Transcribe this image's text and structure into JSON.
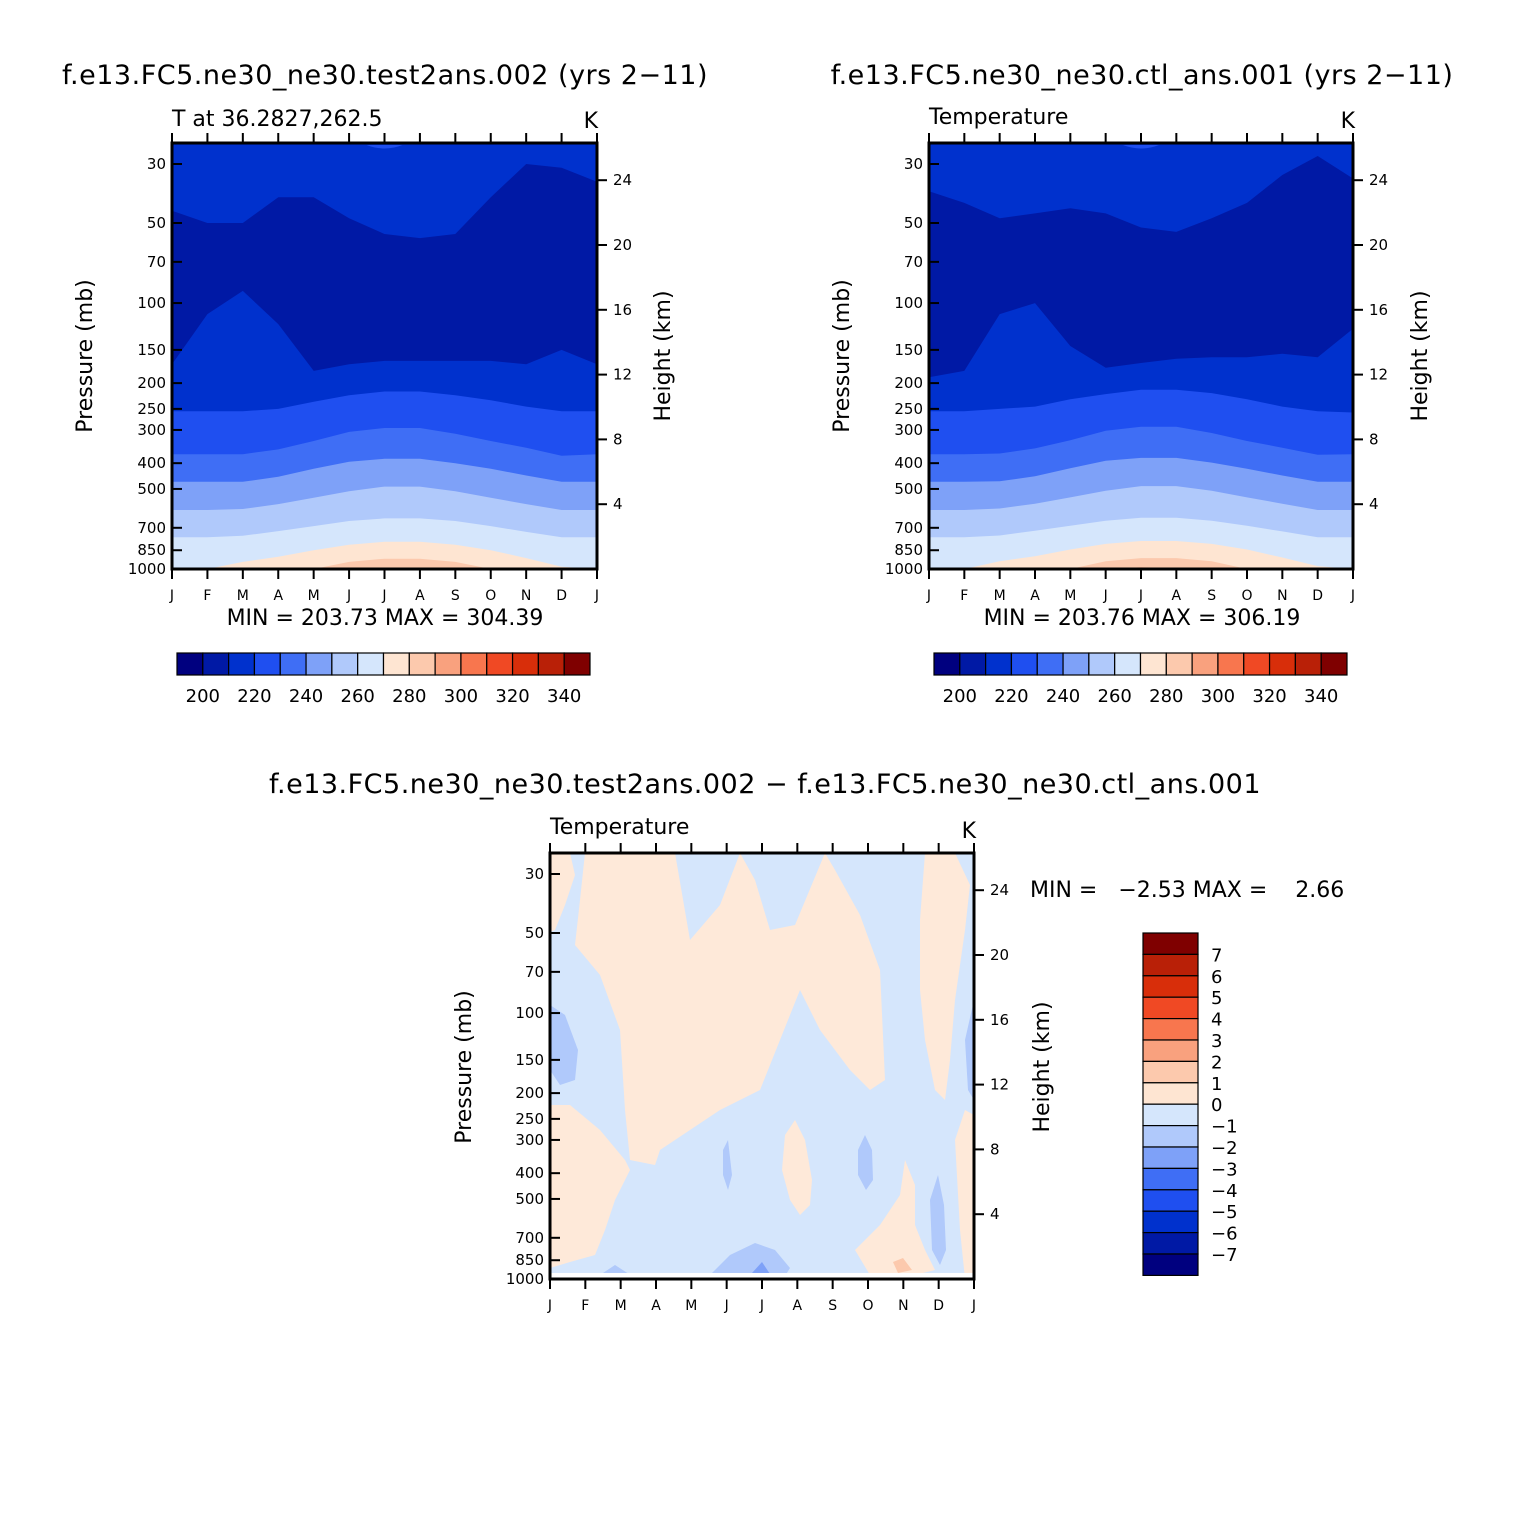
{
  "chart_data": [
    {
      "type": "heatmap",
      "title": "f.e13.FC5.ne30_ne30.test2ans.002 (yrs 2−11)",
      "subtitle_left": "T at 36.2827,262.5",
      "units": "K",
      "ylabel": "Pressure (mb)",
      "y2label": "Height (km)",
      "min_max_text": "MIN = 203.73 MAX = 304.39",
      "min": 203.73,
      "max": 304.39,
      "x": [
        "J",
        "F",
        "M",
        "A",
        "M",
        "J",
        "J",
        "A",
        "S",
        "O",
        "N",
        "D",
        "J"
      ],
      "pressure_ticks": [
        30,
        50,
        70,
        100,
        150,
        200,
        250,
        300,
        400,
        500,
        700,
        850,
        1000
      ],
      "height_ticks_km": [
        4,
        8,
        12,
        16,
        20,
        24
      ],
      "colorbar_labels": [
        "200",
        "220",
        "240",
        "260",
        "280",
        "300",
        "320",
        "340"
      ],
      "contour_levels": [
        210,
        220,
        230,
        240,
        250,
        260,
        270,
        280,
        290,
        300
      ],
      "contour_boundaries_mb": {
        "210": [
          45,
          50,
          50,
          40,
          40,
          48,
          55,
          57,
          55,
          40,
          30,
          31,
          35
        ],
        "220": [
          170,
          110,
          90,
          120,
          180,
          170,
          165,
          165,
          165,
          165,
          170,
          150,
          170
        ],
        "230": [
          255,
          255,
          255,
          250,
          235,
          222,
          215,
          215,
          222,
          232,
          245,
          255,
          255
        ],
        "240": [
          370,
          370,
          370,
          355,
          330,
          305,
          295,
          295,
          310,
          330,
          350,
          375,
          370
        ],
        "250": [
          470,
          470,
          470,
          450,
          420,
          395,
          385,
          385,
          400,
          420,
          445,
          470,
          470
        ],
        "260": [
          600,
          600,
          595,
          570,
          540,
          510,
          490,
          490,
          510,
          540,
          570,
          600,
          600
        ],
        "270": [
          760,
          760,
          750,
          720,
          690,
          660,
          645,
          645,
          660,
          690,
          725,
          760,
          760
        ],
        "280": [
          1000,
          1000,
          940,
          900,
          850,
          810,
          790,
          790,
          810,
          850,
          910,
          980,
          1000
        ],
        "290": [
          null,
          null,
          null,
          null,
          1000,
          940,
          915,
          915,
          940,
          1000,
          null,
          null,
          null
        ],
        "300": [
          null,
          null,
          null,
          null,
          null,
          null,
          990,
          995,
          null,
          null,
          null,
          null,
          null
        ]
      }
    },
    {
      "type": "heatmap",
      "title": "f.e13.FC5.ne30_ne30.ctl_ans.001 (yrs 2−11)",
      "subtitle_left": "Temperature",
      "units": "K",
      "ylabel": "Pressure (mb)",
      "y2label": "Height (km)",
      "min_max_text": "MIN = 203.76 MAX = 306.19",
      "min": 203.76,
      "max": 306.19,
      "x": [
        "J",
        "F",
        "M",
        "A",
        "M",
        "J",
        "J",
        "A",
        "S",
        "O",
        "N",
        "D",
        "J"
      ],
      "pressure_ticks": [
        30,
        50,
        70,
        100,
        150,
        200,
        250,
        300,
        400,
        500,
        700,
        850,
        1000
      ],
      "height_ticks_km": [
        4,
        8,
        12,
        16,
        20,
        24
      ],
      "colorbar_labels": [
        "200",
        "220",
        "240",
        "260",
        "280",
        "300",
        "320",
        "340"
      ],
      "contour_levels": [
        210,
        220,
        230,
        240,
        250,
        260,
        270,
        280,
        290,
        300
      ],
      "contour_boundaries_mb": {
        "210": [
          38,
          42,
          48,
          46,
          44,
          46,
          52,
          54,
          48,
          42,
          33,
          28,
          34
        ],
        "220": [
          190,
          180,
          110,
          100,
          145,
          175,
          168,
          162,
          160,
          160,
          155,
          160,
          125
        ],
        "230": [
          255,
          255,
          250,
          245,
          230,
          220,
          212,
          212,
          218,
          230,
          245,
          255,
          258
        ],
        "240": [
          370,
          370,
          368,
          352,
          328,
          302,
          292,
          292,
          308,
          330,
          350,
          372,
          370
        ],
        "250": [
          470,
          470,
          468,
          448,
          418,
          392,
          382,
          382,
          398,
          420,
          445,
          470,
          470
        ],
        "260": [
          600,
          600,
          592,
          568,
          538,
          508,
          488,
          488,
          508,
          538,
          568,
          600,
          600
        ],
        "270": [
          760,
          760,
          748,
          718,
          688,
          658,
          642,
          642,
          658,
          688,
          722,
          760,
          760
        ],
        "280": [
          1000,
          1000,
          935,
          895,
          845,
          805,
          785,
          785,
          805,
          845,
          905,
          975,
          1000
        ],
        "290": [
          null,
          null,
          null,
          null,
          1000,
          935,
          910,
          910,
          935,
          1000,
          null,
          null,
          null
        ],
        "300": [
          null,
          null,
          null,
          null,
          null,
          null,
          985,
          990,
          null,
          null,
          null,
          null,
          null
        ]
      }
    },
    {
      "type": "heatmap",
      "title": "f.e13.FC5.ne30_ne30.test2ans.002 − f.e13.FC5.ne30_ne30.ctl_ans.001",
      "subtitle_left": "Temperature",
      "units": "K",
      "ylabel": "Pressure (mb)",
      "y2label": "Height (km)",
      "min_max_text": "MIN =   −2.53 MAX =    2.66",
      "min": -2.53,
      "max": 2.66,
      "x": [
        "J",
        "F",
        "M",
        "A",
        "M",
        "J",
        "J",
        "A",
        "S",
        "O",
        "N",
        "D",
        "J"
      ],
      "pressure_ticks": [
        30,
        50,
        70,
        100,
        150,
        200,
        250,
        300,
        400,
        500,
        700,
        850,
        1000
      ],
      "height_ticks_km": [
        4,
        8,
        12,
        16,
        20,
        24
      ],
      "colorbar_labels": [
        "7",
        "6",
        "5",
        "4",
        "3",
        "2",
        "1",
        "0",
        "−1",
        "−2",
        "−3",
        "−4",
        "−5",
        "−6",
        "−7"
      ],
      "regions": [
        {
          "sign": "positive",
          "range": [
            0,
            1
          ],
          "area": "Jan 25–200 mb, Mar–Aug 30–300 mb, Oct–Dec 25–250 mb, lower Jan 300–850 mb, Jul 300–500 mb, Oct–Nov 600–1000 mb"
        },
        {
          "sign": "negative",
          "range": [
            -1,
            0
          ],
          "area": "Jan–Mar 50–250 mb, Jun–Sep 30–60 mb, Aug–Oct 60–250 mb, Feb–Oct 300–1000 mb"
        },
        {
          "sign": "negative",
          "range": [
            -2,
            -1
          ],
          "area": "small patches near Jan 100–170 mb, Jun 350–420 mb, Sep 330–420 mb, Nov–Dec 450–850 mb, Jun–Jul 930–1000 mb"
        }
      ]
    }
  ],
  "colors": {
    "t_levels": [
      "#00007f",
      "#0019a5",
      "#0031cd",
      "#1f4ff0",
      "#3f6ef5",
      "#7ea1f8",
      "#b0c9fb",
      "#d5e6fc",
      "#fee5d2",
      "#fcc9ad",
      "#f9a17e",
      "#f8764e",
      "#f04924",
      "#d82e0a",
      "#b92007",
      "#7f0000"
    ],
    "diff_scale_top_down": [
      "#7f0000",
      "#b92007",
      "#d82e0a",
      "#f04924",
      "#f8764e",
      "#f9a17e",
      "#fcc9ad",
      "#fee5d2",
      "#d5e6fc",
      "#b0c9fb",
      "#7ea1f8",
      "#3f6ef5",
      "#1f4ff0",
      "#0031cd",
      "#0019a5",
      "#00007f"
    ]
  }
}
